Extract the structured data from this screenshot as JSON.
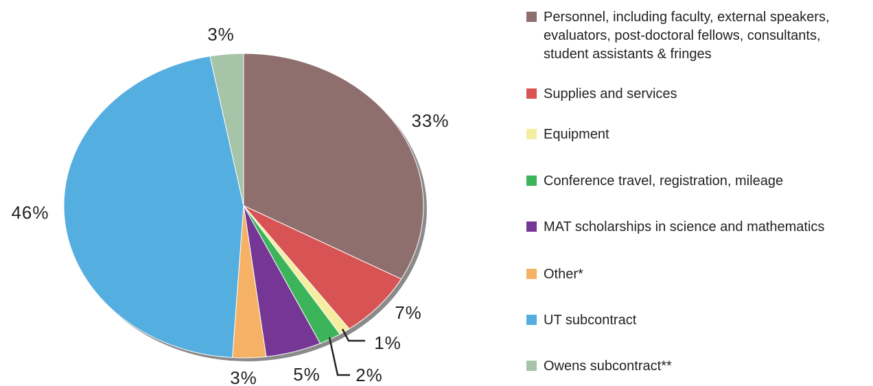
{
  "chart_data": {
    "type": "pie",
    "categories": [
      "Personnel, including faculty, external speakers, evaluators, post-doctoral fellows, consultants, student assistants & fringes",
      "Supplies and services",
      "Equipment",
      "Conference travel, registration, mileage",
      "MAT scholarships in science and mathematics",
      "Other*",
      "UT subcontract",
      "Owens subcontract**"
    ],
    "values": [
      33,
      7,
      1,
      2,
      5,
      3,
      46,
      3
    ],
    "value_labels": [
      "33%",
      "7%",
      "1%",
      "2%",
      "5%",
      "3%",
      "46%",
      "3%"
    ],
    "colors": [
      "#8f6e6e",
      "#d85353",
      "#f5eea0",
      "#3cb55a",
      "#763696",
      "#f5b165",
      "#54aee0",
      "#a6c4a8"
    ]
  }
}
